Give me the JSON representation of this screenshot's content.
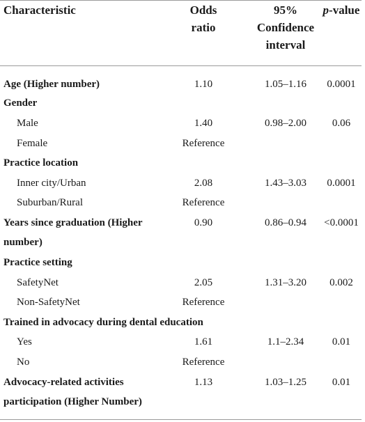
{
  "header": {
    "characteristic": "Characteristic",
    "odds_ratio": [
      "Odds",
      "ratio"
    ],
    "ci": [
      "95%",
      "Confidence",
      "interval"
    ],
    "p_italic": "p",
    "p_rest": "-value"
  },
  "rows": [
    {
      "label": "Age (Higher number)",
      "or": "1.10",
      "ci": "1.05–1.16",
      "p": "0.0001"
    },
    {
      "label": "Gender"
    },
    {
      "label": "Male",
      "or": "1.40",
      "ci": "0.98–2.00",
      "p": "0.06"
    },
    {
      "label": "Female",
      "or": "Reference"
    },
    {
      "label": "Practice location"
    },
    {
      "label": "Inner city/Urban",
      "or": "2.08",
      "ci": "1.43–3.03",
      "p": "0.0001"
    },
    {
      "label": "Suburban/Rural",
      "or": "Reference"
    },
    {
      "label": "Years since graduation (Higher",
      "label2": "number)",
      "or": "0.90",
      "ci": "0.86–0.94",
      "p": "<0.0001"
    },
    {
      "label": "Practice setting"
    },
    {
      "label": "SafetyNet",
      "or": "2.05",
      "ci": "1.31–3.20",
      "p": "0.002"
    },
    {
      "label": "Non-SafetyNet",
      "or": "Reference"
    },
    {
      "label": "Trained in advocacy during dental education"
    },
    {
      "label": "Yes",
      "or": "1.61",
      "ci": "1.1–2.34",
      "p": "0.01"
    },
    {
      "label": "No",
      "or": "Reference"
    },
    {
      "label": "Advocacy-related activities",
      "label2": "participation (Higher Number)",
      "or": "1.13",
      "ci": "1.03–1.25",
      "p": "0.01"
    }
  ]
}
